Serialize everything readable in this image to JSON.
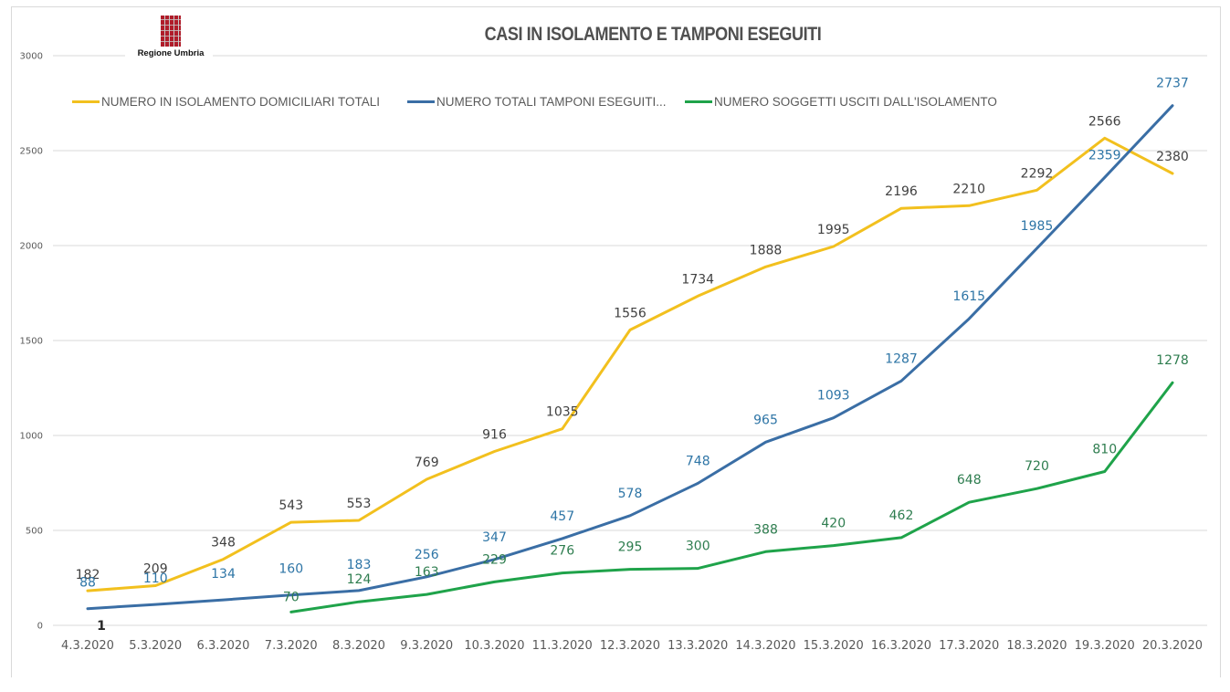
{
  "logo": {
    "text": "Regione Umbria"
  },
  "chart_data": {
    "type": "line",
    "title": "CASI IN ISOLAMENTO E TAMPONI ESEGUITI",
    "xlabel": "",
    "ylabel": "",
    "ylim": [
      0,
      3000
    ],
    "yticks": [
      0,
      500,
      1000,
      1500,
      2000,
      2500,
      3000
    ],
    "grid": true,
    "legend_position": "top",
    "categories": [
      "4.3.2020",
      "5.3.2020",
      "6.3.2020",
      "7.3.2020",
      "8.3.2020",
      "9.3.2020",
      "10.3.2020",
      "11.3.2020",
      "12.3.2020",
      "13.3.2020",
      "14.3.2020",
      "15.3.2020",
      "16.3.2020",
      "17.3.2020",
      "18.3.2020",
      "19.3.2020",
      "20.3.2020"
    ],
    "series": [
      {
        "name": "NUMERO IN ISOLAMENTO DOMICILIARI TOTALI",
        "color": "#f2c01e",
        "label_color": "#404040",
        "values": [
          182,
          209,
          348,
          543,
          553,
          769,
          916,
          1035,
          1556,
          1734,
          1888,
          1995,
          2196,
          2210,
          2292,
          2566,
          2380
        ]
      },
      {
        "name": "NUMERO TOTALI TAMPONI ESEGUITI...",
        "color": "#3a6ea5",
        "label_color": "#2e75a6",
        "values": [
          88,
          110,
          134,
          160,
          183,
          256,
          347,
          457,
          578,
          748,
          965,
          1093,
          1287,
          1615,
          1985,
          2359,
          2737
        ]
      },
      {
        "name": "NUMERO SOGGETTI USCITI DALL'ISOLAMENTO",
        "color": "#1fa34a",
        "label_color": "#2e7d4f",
        "values": [
          null,
          null,
          null,
          70,
          124,
          163,
          229,
          276,
          295,
          300,
          388,
          420,
          462,
          648,
          720,
          810,
          1278
        ]
      }
    ],
    "annotations": [
      {
        "category": "4.3.2020",
        "text": "1"
      }
    ]
  }
}
